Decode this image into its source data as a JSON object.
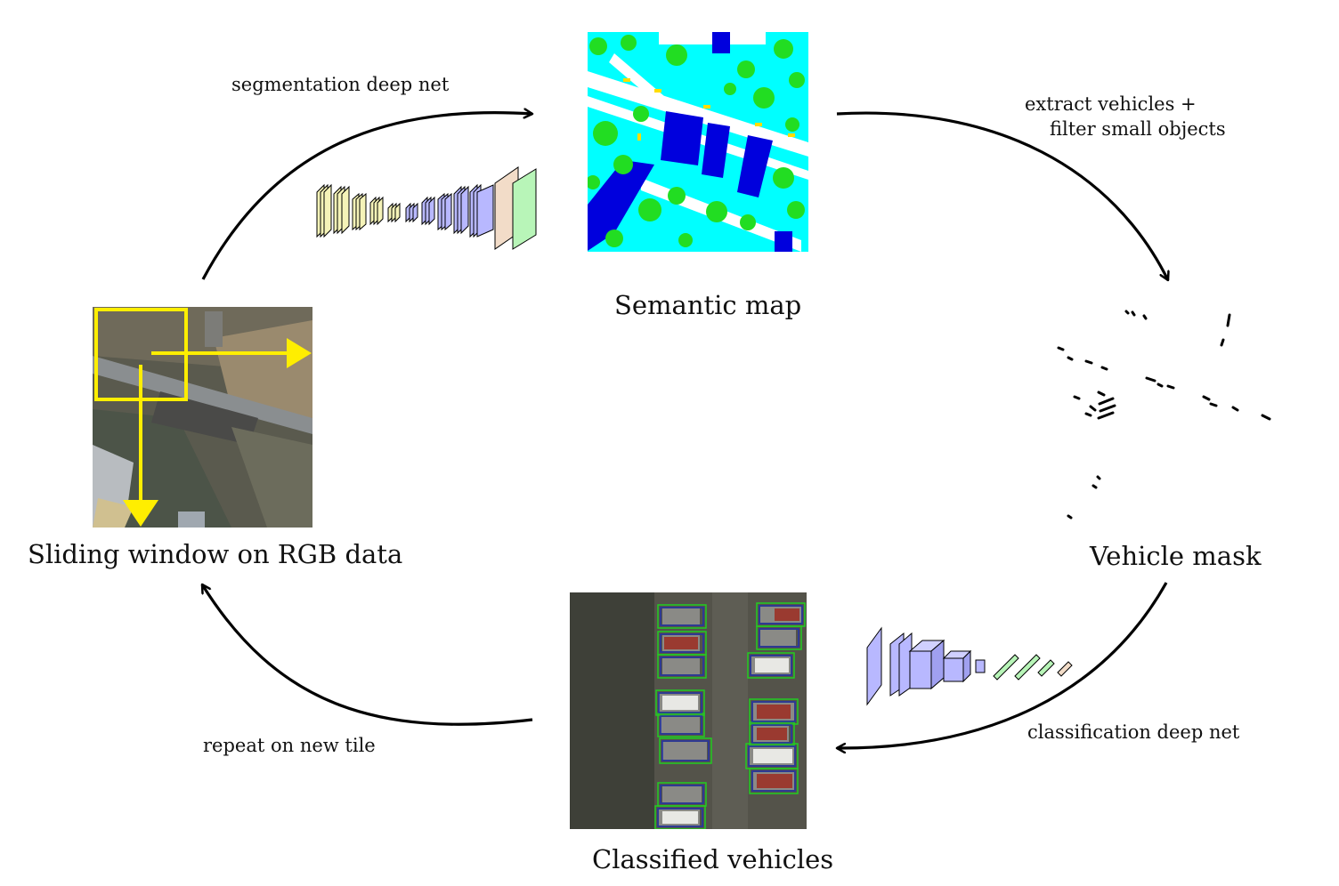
{
  "nodes": {
    "semantic_map": {
      "label": "Semantic map"
    },
    "vehicle_mask": {
      "label": "Vehicle mask"
    },
    "classified_vehicles": {
      "label": "Classified vehicles"
    },
    "sliding_window": {
      "label": "Sliding window on RGB data"
    }
  },
  "edges": {
    "segmentation": {
      "label": "segmentation deep net"
    },
    "extract": {
      "line1": "extract vehicles +",
      "line2": "filter small objects"
    },
    "classification": {
      "label": "classification deep net"
    },
    "repeat": {
      "label": "repeat on new tile"
    }
  },
  "colors": {
    "arrow": "#000000",
    "window": "#ffee00",
    "seg_background": "#00ffff",
    "seg_vegetation": "#22dd22",
    "seg_building": "#0000dd",
    "seg_road": "#ffffff",
    "seg_car": "#ffdd00",
    "encoder": "#f5f3b8",
    "decoder": "#b8b8ff",
    "output_a": "#f2dcc8",
    "output_b": "#b8f5b8",
    "box_outer": "#22cc22",
    "box_inner": "#2233aa"
  }
}
